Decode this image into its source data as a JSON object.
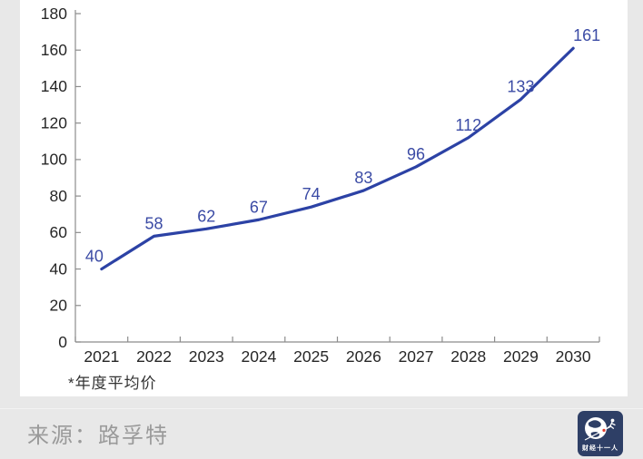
{
  "page": {
    "background": "#e8e8e8",
    "card_background": "#ffffff"
  },
  "chart_data": {
    "type": "line",
    "title": "",
    "categories": [
      "2021",
      "2022",
      "2023",
      "2024",
      "2025",
      "2026",
      "2027",
      "2028",
      "2029",
      "2030"
    ],
    "values": [
      40,
      58,
      62,
      67,
      74,
      83,
      96,
      112,
      133,
      161
    ],
    "xlabel": "",
    "ylabel": "",
    "ylim": [
      0,
      180
    ],
    "ytick_step": 20,
    "grid": false,
    "legend_position": "none",
    "line_color": "#2c42a5",
    "label_color": "#3b4ba5",
    "axis_color": "#8c8c8c",
    "tick_style": "inside",
    "footnote": "*年度平均价"
  },
  "footer": {
    "source": "来源：路孚特",
    "logo_text": "财经十一人",
    "logo_bg": "#2e3f66",
    "logo_accent": "#e0392b"
  }
}
